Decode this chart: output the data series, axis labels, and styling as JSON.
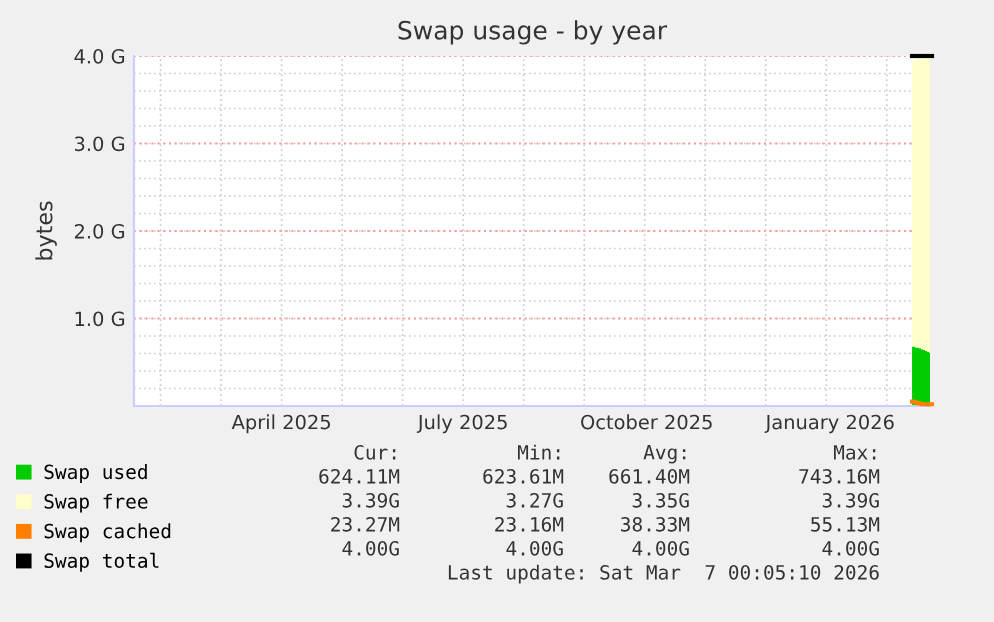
{
  "chart_data": {
    "type": "area",
    "title": "Swap usage - by year",
    "ylabel": "bytes",
    "x": [
      "2026-02-27",
      "2026-02-28",
      "2026-03-01",
      "2026-03-02",
      "2026-03-03",
      "2026-03-04",
      "2026-03-05",
      "2026-03-06",
      "2026-03-07"
    ],
    "stacked": true,
    "series": [
      {
        "name": "Swap used",
        "color": "#00cc00",
        "values": [
          0.68,
          0.67,
          0.67,
          0.66,
          0.65,
          0.64,
          0.63,
          0.62,
          0.61
        ]
      },
      {
        "name": "Swap free",
        "color": "#ffffcc",
        "values": [
          3.27,
          3.29,
          3.3,
          3.31,
          3.32,
          3.33,
          3.35,
          3.36,
          3.37
        ]
      },
      {
        "name": "Swap cached",
        "color": "#ff8000",
        "type": "line",
        "values": [
          0.05,
          0.04,
          0.03,
          0.03,
          0.02,
          0.02,
          0.02,
          0.02,
          0.02
        ]
      },
      {
        "name": "Swap total",
        "color": "#000000",
        "type": "line",
        "values": [
          4.0,
          4.0,
          4.0,
          4.0,
          4.0,
          4.0,
          4.0,
          4.0,
          4.0
        ]
      }
    ],
    "xlim": [
      "2025-02-01",
      "2026-03-07"
    ],
    "xticks": [
      {
        "value": "2025-04-16",
        "label": "April 2025"
      },
      {
        "value": "2025-07-16",
        "label": "July 2025"
      },
      {
        "value": "2025-10-16",
        "label": "October 2025"
      },
      {
        "value": "2026-01-16",
        "label": "January 2026"
      }
    ],
    "ylim": [
      0,
      4
    ],
    "yticks": [
      {
        "value": 1,
        "label": "1.0 G"
      },
      {
        "value": 2,
        "label": "2.0 G"
      },
      {
        "value": 3,
        "label": "3.0 G"
      },
      {
        "value": 4,
        "label": "4.0 G"
      }
    ],
    "grid": true,
    "legend": "bottom",
    "annotations": [
      "Cur:",
      "Min:",
      "Avg:",
      "Max:",
      "624.11M",
      "623.61M",
      "661.40M",
      "743.16M",
      "3.39G",
      "3.27G",
      "3.35G",
      "3.39G",
      "23.27M",
      "23.16M",
      "38.33M",
      "55.13M",
      "4.00G",
      "4.00G",
      "4.00G",
      "4.00G",
      "Last update: Sat Mar  7 00:05:10 2026"
    ]
  }
}
